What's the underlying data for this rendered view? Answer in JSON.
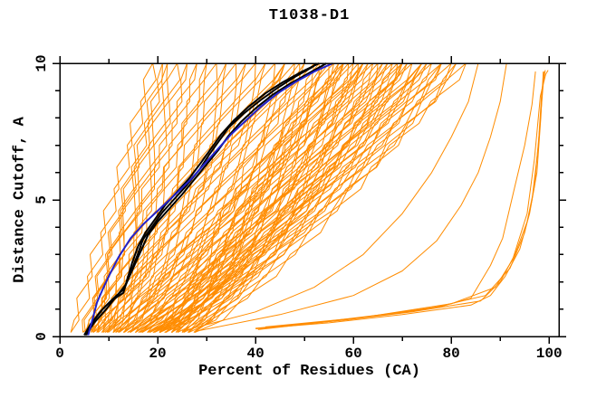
{
  "title": "T1038-D1",
  "chart_data": {
    "type": "line",
    "title": "T1038-D1",
    "xlabel": "Percent of Residues (CA)",
    "ylabel": "Distance Cutoff, A",
    "xlim": [
      0,
      102
    ],
    "ylim": [
      0,
      10
    ],
    "grid": false,
    "legend": "none",
    "x_major_ticks": [
      0,
      20,
      40,
      60,
      80,
      100
    ],
    "x_minor_ticks": [
      10,
      30,
      50,
      70,
      90
    ],
    "y_major_ticks": [
      0,
      5,
      10
    ],
    "y_minor_ticks": [
      1,
      2,
      3,
      4,
      6,
      7,
      8,
      9
    ],
    "colors": {
      "models": "#FF8C00",
      "highlight_black": "#000000",
      "highlight_blue": "#2222CC",
      "frame": "#000000",
      "background": "#FFFFFF"
    },
    "model_curves_band": {
      "y_samples": [
        0.15,
        0.6,
        1.4,
        2.2,
        3.0,
        3.8,
        4.6,
        5.4,
        6.2,
        7.0,
        7.8,
        8.6,
        9.4,
        10
      ],
      "jitter": 0.9,
      "curves": [
        [
          2,
          19,
          1
        ],
        [
          4.5,
          21,
          1
        ],
        [
          5,
          24,
          1
        ],
        [
          5.5,
          28,
          1
        ],
        [
          6,
          32,
          1
        ],
        [
          6.5,
          26,
          1
        ],
        [
          7,
          36,
          0.95
        ],
        [
          7.5,
          30,
          1
        ],
        [
          8,
          40,
          0.95
        ],
        [
          8.5,
          34,
          1
        ],
        [
          9,
          44,
          0.95
        ],
        [
          9.5,
          38,
          1
        ],
        [
          10,
          48,
          0.9
        ],
        [
          10.5,
          42,
          1
        ],
        [
          11,
          52,
          0.9
        ],
        [
          11.5,
          46,
          0.95
        ],
        [
          12,
          56,
          0.9
        ],
        [
          12.5,
          50,
          0.95
        ],
        [
          13,
          60,
          0.85
        ],
        [
          13.5,
          54,
          0.9
        ],
        [
          14,
          64,
          0.85
        ],
        [
          14.5,
          58,
          0.9
        ],
        [
          15,
          68,
          0.85
        ],
        [
          15.5,
          62,
          0.85
        ],
        [
          16,
          72,
          0.8
        ],
        [
          16.5,
          66,
          0.85
        ],
        [
          17,
          76,
          0.8
        ],
        [
          17.5,
          70,
          0.8
        ],
        [
          18,
          80,
          0.78
        ],
        [
          18.5,
          74,
          0.8
        ],
        [
          19,
          83,
          0.78
        ],
        [
          19.5,
          57,
          0.9
        ],
        [
          20,
          49,
          0.95
        ],
        [
          20.5,
          63,
          0.85
        ],
        [
          21,
          53,
          0.9
        ],
        [
          21.5,
          67,
          0.85
        ],
        [
          22,
          59,
          0.88
        ],
        [
          22.5,
          71,
          0.82
        ],
        [
          23,
          55,
          0.9
        ],
        [
          23.5,
          75,
          0.8
        ],
        [
          24,
          61,
          0.86
        ],
        [
          24.5,
          78,
          0.8
        ],
        [
          25,
          65,
          0.84
        ],
        [
          25.5,
          81,
          0.78
        ],
        [
          26,
          69,
          0.82
        ],
        [
          6,
          46,
          0.92
        ],
        [
          8,
          58,
          0.88
        ],
        [
          10,
          62,
          0.86
        ],
        [
          12,
          70,
          0.82
        ],
        [
          14,
          74,
          0.8
        ],
        [
          16,
          78,
          0.78
        ],
        [
          5,
          22,
          1.05
        ]
      ]
    },
    "outlier_curves_orange": [
      [
        [
          40,
          0.28
        ],
        [
          55,
          0.5
        ],
        [
          70,
          0.8
        ],
        [
          84,
          1.15
        ],
        [
          88,
          1.5
        ],
        [
          91,
          2.2
        ],
        [
          94,
          3.2
        ],
        [
          96,
          4.5
        ],
        [
          97.5,
          6
        ],
        [
          98.3,
          8
        ],
        [
          98.8,
          9.7
        ]
      ],
      [
        [
          41,
          0.3
        ],
        [
          58,
          0.6
        ],
        [
          72,
          0.9
        ],
        [
          86,
          1.3
        ],
        [
          90,
          2.0
        ],
        [
          93,
          3.0
        ],
        [
          95.5,
          4.2
        ],
        [
          97,
          5.5
        ],
        [
          98,
          7.5
        ],
        [
          99,
          9.7
        ]
      ],
      [
        [
          40.5,
          0.25
        ],
        [
          60,
          0.65
        ],
        [
          75,
          1.0
        ],
        [
          87,
          1.5
        ],
        [
          92,
          2.5
        ],
        [
          95,
          3.8
        ],
        [
          96.5,
          5.0
        ],
        [
          97.8,
          7.0
        ],
        [
          98.5,
          9.0
        ],
        [
          99.2,
          9.75
        ]
      ],
      [
        [
          40,
          0.3
        ],
        [
          52,
          0.5
        ],
        [
          66,
          0.8
        ],
        [
          78,
          1.1
        ],
        [
          84,
          1.4
        ],
        [
          88,
          2.6
        ],
        [
          90.5,
          3.6
        ],
        [
          93,
          5.5
        ],
        [
          95,
          7.0
        ],
        [
          96.5,
          8.5
        ],
        [
          97.2,
          9.7
        ]
      ],
      [
        [
          42,
          0.35
        ],
        [
          62,
          0.7
        ],
        [
          80,
          1.2
        ],
        [
          89,
          1.8
        ],
        [
          92.5,
          2.8
        ],
        [
          95.5,
          4.5
        ],
        [
          97,
          6.5
        ],
        [
          98.2,
          8.8
        ],
        [
          99.3,
          9.6
        ],
        [
          99.8,
          9.75
        ]
      ],
      [
        [
          28,
          0.2
        ],
        [
          45,
          0.8
        ],
        [
          60,
          1.5
        ],
        [
          70,
          2.4
        ],
        [
          77,
          3.5
        ],
        [
          82,
          4.8
        ],
        [
          85.5,
          6.0
        ],
        [
          88,
          7.3
        ],
        [
          90,
          8.6
        ],
        [
          91.3,
          10
        ]
      ],
      [
        [
          25,
          0.2
        ],
        [
          40,
          0.9
        ],
        [
          52,
          1.8
        ],
        [
          62,
          3.0
        ],
        [
          70,
          4.5
        ],
        [
          76,
          6.0
        ],
        [
          80,
          7.3
        ],
        [
          83.5,
          8.6
        ],
        [
          85.5,
          10
        ]
      ]
    ],
    "highlight_curves": {
      "black": [
        [
          [
            5.0,
            0.05
          ],
          [
            6.3,
            0.45
          ],
          [
            8.5,
            0.95
          ],
          [
            10.5,
            1.3
          ],
          [
            13,
            1.6
          ],
          [
            13.8,
            2.1
          ],
          [
            14.8,
            2.7
          ],
          [
            16,
            3.3
          ],
          [
            17.5,
            3.8
          ],
          [
            19.5,
            4.3
          ],
          [
            21.5,
            4.8
          ],
          [
            24,
            5.3
          ],
          [
            26.5,
            5.8
          ],
          [
            29,
            6.4
          ],
          [
            31,
            6.9
          ],
          [
            33,
            7.4
          ],
          [
            35.5,
            7.9
          ],
          [
            38.5,
            8.4
          ],
          [
            42,
            8.9
          ],
          [
            45.5,
            9.3
          ],
          [
            49.5,
            9.7
          ],
          [
            53,
            10
          ]
        ],
        [
          [
            5.4,
            0.05
          ],
          [
            7,
            0.5
          ],
          [
            9.5,
            1.0
          ],
          [
            11.5,
            1.45
          ],
          [
            13.5,
            1.9
          ],
          [
            15,
            2.5
          ],
          [
            16.5,
            3.1
          ],
          [
            18,
            3.7
          ],
          [
            20,
            4.2
          ],
          [
            22.5,
            4.7
          ],
          [
            25,
            5.2
          ],
          [
            27.5,
            5.75
          ],
          [
            30,
            6.3
          ],
          [
            32.5,
            6.85
          ],
          [
            34.5,
            7.35
          ],
          [
            37,
            7.85
          ],
          [
            40,
            8.35
          ],
          [
            43.5,
            8.85
          ],
          [
            47,
            9.25
          ],
          [
            51,
            9.65
          ],
          [
            54.5,
            10
          ]
        ],
        [
          [
            5.2,
            0.05
          ],
          [
            6.6,
            0.5
          ],
          [
            9,
            1.05
          ],
          [
            11,
            1.4
          ],
          [
            13.2,
            1.75
          ],
          [
            14.5,
            2.35
          ],
          [
            15.8,
            2.95
          ],
          [
            17,
            3.55
          ],
          [
            19,
            4.05
          ],
          [
            21,
            4.55
          ],
          [
            23.5,
            5.05
          ],
          [
            26,
            5.55
          ],
          [
            28.5,
            6.1
          ],
          [
            30.5,
            6.65
          ],
          [
            32.5,
            7.15
          ],
          [
            34.5,
            7.65
          ],
          [
            37.5,
            8.15
          ],
          [
            41,
            8.65
          ],
          [
            44.5,
            9.1
          ],
          [
            48,
            9.5
          ],
          [
            51.5,
            9.85
          ],
          [
            52.5,
            10
          ]
        ]
      ],
      "blue": [
        [
          [
            5.8,
            0.05
          ],
          [
            6.5,
            0.5
          ],
          [
            7.6,
            1.25
          ],
          [
            8.7,
            1.7
          ],
          [
            10,
            2.2
          ],
          [
            12,
            2.9
          ],
          [
            14.5,
            3.6
          ],
          [
            17,
            4.1
          ],
          [
            20,
            4.6
          ],
          [
            23,
            5.1
          ],
          [
            26.5,
            5.7
          ],
          [
            29.5,
            6.3
          ],
          [
            32.5,
            6.9
          ],
          [
            35,
            7.4
          ],
          [
            38,
            7.9
          ],
          [
            41,
            8.4
          ],
          [
            44.5,
            8.9
          ],
          [
            48,
            9.3
          ],
          [
            52,
            9.7
          ],
          [
            55.8,
            10
          ]
        ]
      ]
    }
  }
}
